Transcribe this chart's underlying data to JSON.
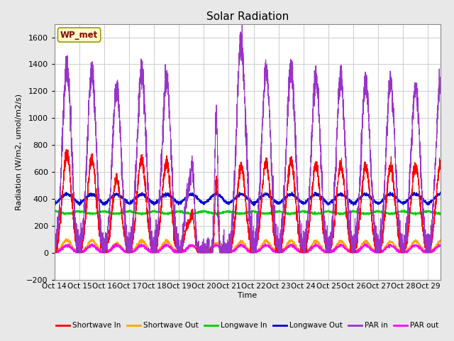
{
  "title": "Solar Radiation",
  "ylabel": "Radiation (W/m2, umol/m2/s)",
  "xlabel": "Time",
  "ylim": [
    -200,
    1700
  ],
  "yticks": [
    -200,
    0,
    200,
    400,
    600,
    800,
    1000,
    1200,
    1400,
    1600
  ],
  "xlim": [
    0,
    15.5
  ],
  "xtick_labels": [
    "Oct 14",
    "Oct 15",
    "Oct 16",
    "Oct 17",
    "Oct 18",
    "Oct 19",
    "Oct 20",
    "Oct 21",
    "Oct 22",
    "Oct 23",
    "Oct 24",
    "Oct 25",
    "Oct 26",
    "Oct 27",
    "Oct 28",
    "Oct 29"
  ],
  "xtick_positions": [
    0,
    1,
    2,
    3,
    4,
    5,
    6,
    7,
    8,
    9,
    10,
    11,
    12,
    13,
    14,
    15
  ],
  "fig_bg_color": "#e8e8e8",
  "plot_bg_color": "#ffffff",
  "grid_color": "#cccccc",
  "label_box_text": "WP_met",
  "label_box_facecolor": "#ffffcc",
  "label_box_edgecolor": "#999900",
  "legend_entries": [
    "Shortwave In",
    "Shortwave Out",
    "Longwave In",
    "Longwave Out",
    "PAR in",
    "PAR out"
  ],
  "legend_colors": [
    "#ff0000",
    "#ffa500",
    "#00cc00",
    "#0000cc",
    "#9933cc",
    "#ff00ff"
  ],
  "line_width": 0.8,
  "n_days": 16,
  "points_per_day": 288,
  "day_peaks_sw": [
    730,
    700,
    545,
    700,
    670,
    390,
    530,
    640,
    670,
    680,
    650,
    650,
    645,
    640,
    645,
    650
  ],
  "day_peaks_par": [
    1380,
    1340,
    1230,
    1350,
    1290,
    860,
    1050,
    1560,
    1355,
    1360,
    1300,
    1285,
    1260,
    1250,
    1240,
    1250
  ],
  "lw_in_base": 310,
  "lw_out_base": 355,
  "lw_out_bump": 80,
  "par_out_peak": 55
}
